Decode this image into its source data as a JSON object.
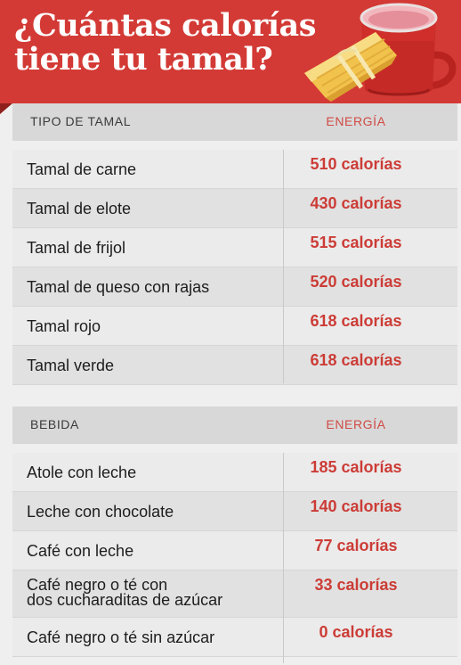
{
  "header": {
    "title_line1": "¿Cuántas calorías",
    "title_line2": "tiene tu tamal?"
  },
  "colors": {
    "header_red": "#d33a35",
    "accent_red": "#cc3c36",
    "header_row_gray": "#d8d8d8",
    "row_gray": "#ebebeb"
  },
  "tamales": {
    "col_type": "TIPO DE TAMAL",
    "col_energy": "ENERGÍA",
    "rows": [
      {
        "name": "Tamal de carne",
        "energy": "510 calorías"
      },
      {
        "name": "Tamal de elote",
        "energy": "430 calorías"
      },
      {
        "name": "Tamal de frijol",
        "energy": "515 calorías"
      },
      {
        "name": "Tamal de queso con rajas",
        "energy": "520 calorías"
      },
      {
        "name": "Tamal rojo",
        "energy": "618 calorías"
      },
      {
        "name": "Tamal verde",
        "energy": "618 calorías"
      }
    ]
  },
  "bebidas": {
    "col_type": "BEBIDA",
    "col_energy": "ENERGÍA",
    "rows": [
      {
        "name": "Atole con leche",
        "energy": "185 calorías"
      },
      {
        "name": "Leche con chocolate",
        "energy": "140 calorías"
      },
      {
        "name": "Café con leche",
        "energy": "77 calorías"
      },
      {
        "name": "Café negro o té con\ndos cucharaditas de azúcar",
        "energy": "33 calorías"
      },
      {
        "name": "Café negro o té sin azúcar",
        "energy": "0 calorías"
      }
    ]
  }
}
